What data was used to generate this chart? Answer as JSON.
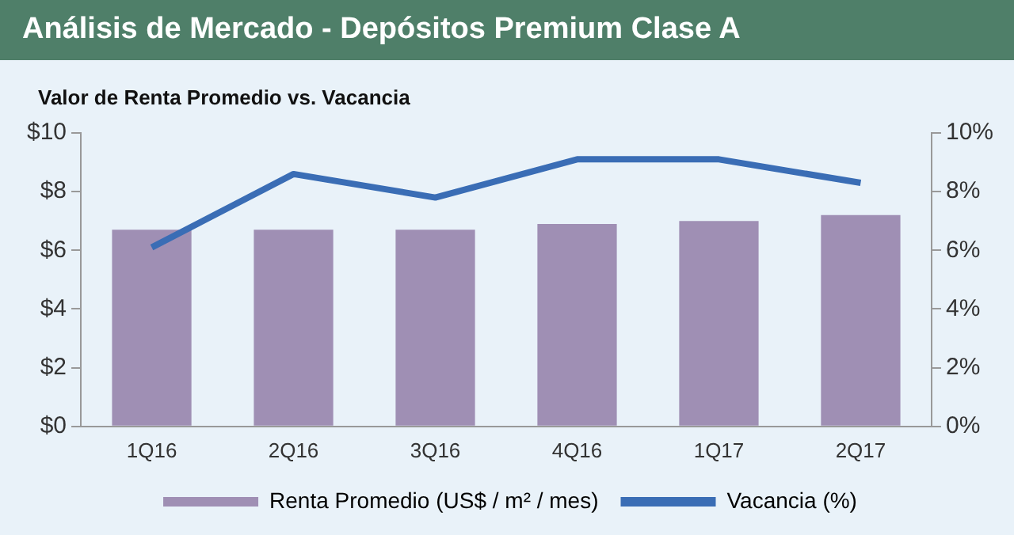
{
  "chart_data": {
    "type": "bar",
    "title": "Análisis de Mercado - Depósitos Premium Clase A",
    "subtitle": "Valor de Renta Promedio vs. Vacancia",
    "categories": [
      "1Q16",
      "2Q16",
      "3Q16",
      "4Q16",
      "1Q17",
      "2Q17"
    ],
    "series": [
      {
        "name": "Renta Promedio (US$ / m² / mes)",
        "color": "#9f8fb4",
        "values": [
          6.7,
          6.7,
          6.7,
          6.9,
          7.0,
          7.2
        ]
      },
      {
        "name": "Vacancia (%)",
        "type": "line",
        "axis": "y2",
        "color": "#3a6db5",
        "values": [
          6.1,
          8.6,
          7.8,
          9.1,
          9.1,
          8.3
        ]
      }
    ],
    "ylim": [
      0,
      10
    ],
    "yticks": [
      {
        "value": 0,
        "label": "$0"
      },
      {
        "value": 2,
        "label": "$2"
      },
      {
        "value": 4,
        "label": "$4"
      },
      {
        "value": 6,
        "label": "$6"
      },
      {
        "value": 8,
        "label": "$8"
      },
      {
        "value": 10,
        "label": "$10"
      }
    ],
    "y2lim": [
      0,
      10
    ],
    "y2ticks": [
      {
        "value": 0,
        "label": "0%"
      },
      {
        "value": 2,
        "label": "2%"
      },
      {
        "value": 4,
        "label": "4%"
      },
      {
        "value": 6,
        "label": "6%"
      },
      {
        "value": 8,
        "label": "8%"
      },
      {
        "value": 10,
        "label": "10%"
      }
    ],
    "grid": false,
    "legend": "bottom",
    "marker": "none",
    "line_style": "solid"
  }
}
